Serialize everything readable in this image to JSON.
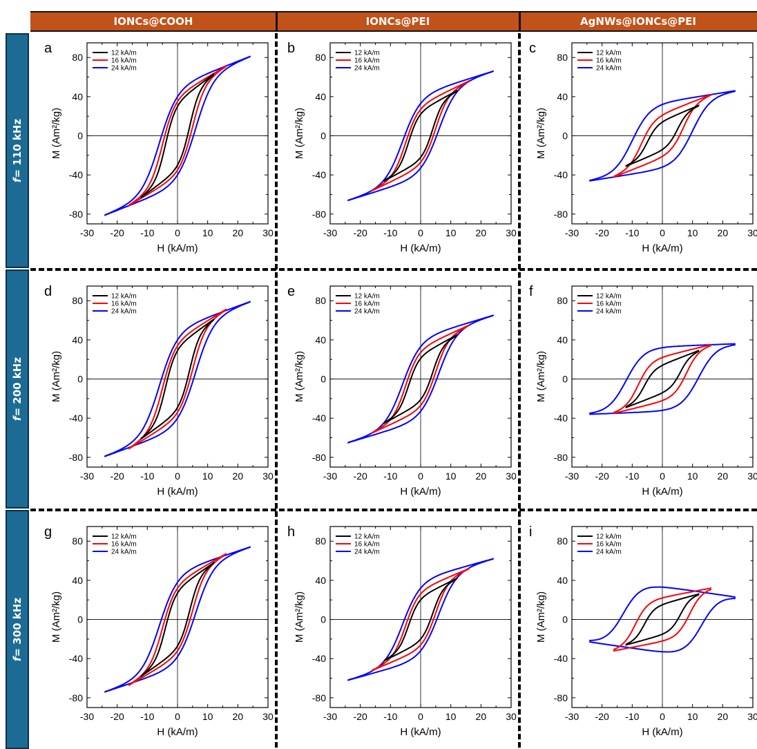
{
  "columns": [
    "IONCs@COOH",
    "IONCs@PEI",
    "AgNWs@IONCs@PEI"
  ],
  "rows": [
    {
      "prefix": "f",
      "rest": "= 110 kHz"
    },
    {
      "prefix": "f",
      "rest": "= 200 kHz"
    },
    {
      "prefix": "f",
      "rest": "= 300 kHz"
    }
  ],
  "series_colors": {
    "12 kA/m": "#000000",
    "16 kA/m": "#ff0000",
    "24 kA/m": "#0000ff"
  },
  "chart_data": [
    {
      "panel": "a",
      "type": "line",
      "xlabel": "H (kA/m)",
      "ylabel": "M (Am²/kg)",
      "xlim": [
        -30,
        30
      ],
      "ylim": [
        -90,
        95
      ],
      "xticks": [
        -30,
        -20,
        -10,
        0,
        10,
        20,
        30
      ],
      "yticks": [
        -80,
        -40,
        0,
        40,
        80
      ],
      "legend": "top-left",
      "series": [
        {
          "name": "12 kA/m",
          "Hmax": 12,
          "Mmax": 63,
          "Hc": 4,
          "Mr": 30
        },
        {
          "name": "16 kA/m",
          "Hmax": 16,
          "Mmax": 71,
          "Hc": 5,
          "Mr": 35
        },
        {
          "name": "24 kA/m",
          "Hmax": 24,
          "Mmax": 81,
          "Hc": 6,
          "Mr": 40
        }
      ]
    },
    {
      "panel": "b",
      "type": "line",
      "xlabel": "H (kA/m)",
      "ylabel": "M (Am²/kg)",
      "xlim": [
        -30,
        30
      ],
      "ylim": [
        -90,
        95
      ],
      "xticks": [
        -30,
        -20,
        -10,
        0,
        10,
        20,
        30
      ],
      "yticks": [
        -80,
        -40,
        0,
        40,
        80
      ],
      "legend": "top-left",
      "series": [
        {
          "name": "12 kA/m",
          "Hmax": 12,
          "Mmax": 46,
          "Hc": 4,
          "Mr": 22
        },
        {
          "name": "16 kA/m",
          "Hmax": 16,
          "Mmax": 56,
          "Hc": 5,
          "Mr": 27
        },
        {
          "name": "24 kA/m",
          "Hmax": 24,
          "Mmax": 66,
          "Hc": 6,
          "Mr": 33
        }
      ]
    },
    {
      "panel": "c",
      "type": "line",
      "xlabel": "H (kA/m)",
      "ylabel": "M (Am²/kg)",
      "xlim": [
        -30,
        30
      ],
      "ylim": [
        -90,
        95
      ],
      "xticks": [
        -30,
        -20,
        -10,
        0,
        10,
        20,
        30
      ],
      "yticks": [
        -80,
        -40,
        0,
        40,
        80
      ],
      "legend": "top-left",
      "series": [
        {
          "name": "12 kA/m",
          "Hmax": 12,
          "Mmax": 31,
          "Hc": 5,
          "Mr": 14
        },
        {
          "name": "16 kA/m",
          "Hmax": 16,
          "Mmax": 42,
          "Hc": 7,
          "Mr": 21
        },
        {
          "name": "24 kA/m",
          "Hmax": 24,
          "Mmax": 46,
          "Hc": 10,
          "Mr": 32
        }
      ]
    },
    {
      "panel": "d",
      "type": "line",
      "xlabel": "H (kA/m)",
      "ylabel": "M (Am²/kg)",
      "xlim": [
        -30,
        30
      ],
      "ylim": [
        -90,
        95
      ],
      "xticks": [
        -30,
        -20,
        -10,
        0,
        10,
        20,
        30
      ],
      "yticks": [
        -80,
        -40,
        0,
        40,
        80
      ],
      "legend": "top-left",
      "series": [
        {
          "name": "12 kA/m",
          "Hmax": 12,
          "Mmax": 61,
          "Hc": 4,
          "Mr": 29
        },
        {
          "name": "16 kA/m",
          "Hmax": 16,
          "Mmax": 71,
          "Hc": 5,
          "Mr": 34
        },
        {
          "name": "24 kA/m",
          "Hmax": 24,
          "Mmax": 79,
          "Hc": 6,
          "Mr": 40
        }
      ]
    },
    {
      "panel": "e",
      "type": "line",
      "xlabel": "H (kA/m)",
      "ylabel": "M (Am²/kg)",
      "xlim": [
        -30,
        30
      ],
      "ylim": [
        -90,
        95
      ],
      "xticks": [
        -30,
        -20,
        -10,
        0,
        10,
        20,
        30
      ],
      "yticks": [
        -80,
        -40,
        0,
        40,
        80
      ],
      "legend": "top-left",
      "series": [
        {
          "name": "12 kA/m",
          "Hmax": 12,
          "Mmax": 45,
          "Hc": 4,
          "Mr": 21
        },
        {
          "name": "16 kA/m",
          "Hmax": 16,
          "Mmax": 55,
          "Hc": 5,
          "Mr": 27
        },
        {
          "name": "24 kA/m",
          "Hmax": 24,
          "Mmax": 65,
          "Hc": 6,
          "Mr": 33
        }
      ]
    },
    {
      "panel": "f",
      "type": "line",
      "xlabel": "H (kA/m)",
      "ylabel": "M (Am²/kg)",
      "xlim": [
        -30,
        30
      ],
      "ylim": [
        -90,
        95
      ],
      "xticks": [
        -30,
        -20,
        -10,
        0,
        10,
        20,
        30
      ],
      "yticks": [
        -80,
        -40,
        0,
        40,
        80
      ],
      "legend": "top-left",
      "series": [
        {
          "name": "12 kA/m",
          "Hmax": 12,
          "Mmax": 29,
          "Hc": 6,
          "Mr": 14
        },
        {
          "name": "16 kA/m",
          "Hmax": 16,
          "Mmax": 35,
          "Hc": 8,
          "Mr": 22
        },
        {
          "name": "24 kA/m",
          "Hmax": 24,
          "Mmax": 36,
          "Hc": 12,
          "Mr": 32
        }
      ]
    },
    {
      "panel": "g",
      "type": "line",
      "xlabel": "H (kA/m)",
      "ylabel": "M (Am²/kg)",
      "xlim": [
        -30,
        30
      ],
      "ylim": [
        -90,
        95
      ],
      "xticks": [
        -30,
        -20,
        -10,
        0,
        10,
        20,
        30
      ],
      "yticks": [
        -80,
        -40,
        0,
        40,
        80
      ],
      "legend": "top-left",
      "series": [
        {
          "name": "12 kA/m",
          "Hmax": 12,
          "Mmax": 58,
          "Hc": 4,
          "Mr": 27
        },
        {
          "name": "16 kA/m",
          "Hmax": 16,
          "Mmax": 67,
          "Hc": 5,
          "Mr": 32
        },
        {
          "name": "24 kA/m",
          "Hmax": 24,
          "Mmax": 74,
          "Hc": 6,
          "Mr": 38
        }
      ]
    },
    {
      "panel": "h",
      "type": "line",
      "xlabel": "H (kA/m)",
      "ylabel": "M (Am²/kg)",
      "xlim": [
        -30,
        30
      ],
      "ylim": [
        -90,
        95
      ],
      "xticks": [
        -30,
        -20,
        -10,
        0,
        10,
        20,
        30
      ],
      "yticks": [
        -80,
        -40,
        0,
        40,
        80
      ],
      "legend": "top-left",
      "series": [
        {
          "name": "12 kA/m",
          "Hmax": 12,
          "Mmax": 42,
          "Hc": 4,
          "Mr": 20
        },
        {
          "name": "16 kA/m",
          "Hmax": 16,
          "Mmax": 52,
          "Hc": 5,
          "Mr": 26
        },
        {
          "name": "24 kA/m",
          "Hmax": 24,
          "Mmax": 62,
          "Hc": 6,
          "Mr": 32
        }
      ]
    },
    {
      "panel": "i",
      "type": "line",
      "xlabel": "H (kA/m)",
      "ylabel": "M (Am²/kg)",
      "xlim": [
        -30,
        30
      ],
      "ylim": [
        -90,
        95
      ],
      "xticks": [
        -30,
        -20,
        -10,
        0,
        10,
        20,
        30
      ],
      "yticks": [
        -80,
        -40,
        0,
        40,
        80
      ],
      "legend": "top-left",
      "series": [
        {
          "name": "12 kA/m",
          "Hmax": 12,
          "Mmax": 26,
          "Hc": 6,
          "Mr": 15
        },
        {
          "name": "16 kA/m",
          "Hmax": 16,
          "Mmax": 32,
          "Hc": 9,
          "Mr": 22
        },
        {
          "name": "24 kA/m",
          "Hmax": 24,
          "Mmax": 23,
          "Hc": 13,
          "Mr": 33
        }
      ]
    }
  ]
}
